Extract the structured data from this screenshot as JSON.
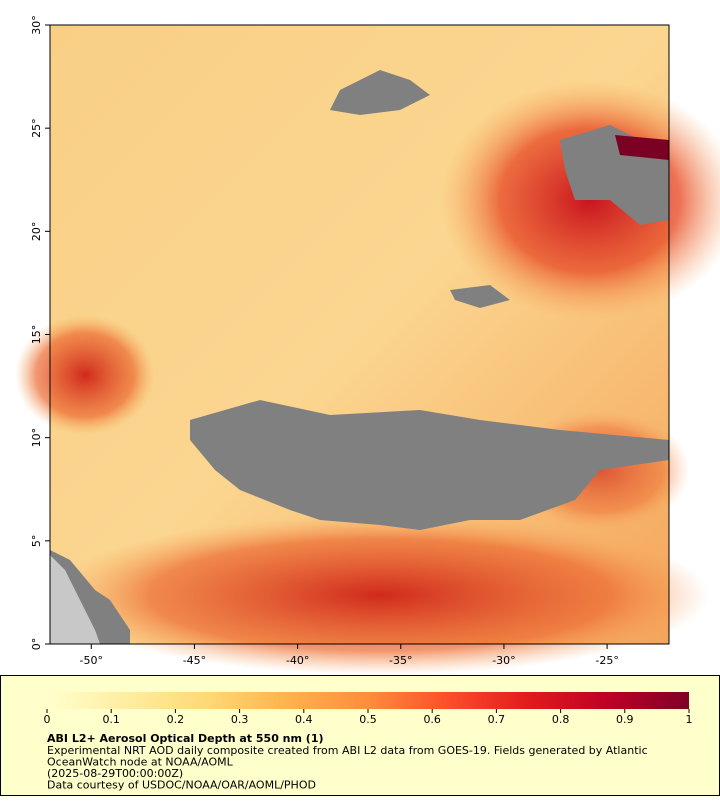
{
  "map": {
    "xlim": [
      -52,
      -22
    ],
    "ylim": [
      0,
      30
    ],
    "xticks": [
      {
        "value": -50,
        "label": "-50°"
      },
      {
        "value": -45,
        "label": "-45°"
      },
      {
        "value": -40,
        "label": "-40°"
      },
      {
        "value": -35,
        "label": "-35°"
      },
      {
        "value": -30,
        "label": "-30°"
      },
      {
        "value": -25,
        "label": "-25°"
      }
    ],
    "yticks": [
      {
        "value": 0,
        "label": "0°"
      },
      {
        "value": 5,
        "label": "5°"
      },
      {
        "value": 10,
        "label": "10°"
      },
      {
        "value": 15,
        "label": "15°"
      },
      {
        "value": 20,
        "label": "20°"
      },
      {
        "value": 25,
        "label": "25°"
      },
      {
        "value": 30,
        "label": "30°"
      }
    ]
  },
  "colorbar": {
    "lim": [
      0,
      1
    ],
    "ticks": [
      0,
      0.1,
      0.2,
      0.3,
      0.4,
      0.5,
      0.6,
      0.7,
      0.8,
      0.9,
      1
    ],
    "colors": [
      "#ffffcc",
      "#ffeda0",
      "#fed976",
      "#feb24c",
      "#fd8d3c",
      "#fc4e2a",
      "#e31a1c",
      "#bd0026",
      "#800026"
    ]
  },
  "caption": {
    "title": "ABI L2+ Aerosol Optical Depth at 550 nm (1)",
    "lines": [
      "Experimental NRT AOD daily composite created from ABI L2 data from GOES-19. Fields generated by Atlantic",
      "OceanWatch node at NOAA/AOML",
      "(2025-08-29T00:00:00Z)",
      "Data courtesy of USDOC/NOAA/OAR/AOML/PHOD"
    ]
  }
}
